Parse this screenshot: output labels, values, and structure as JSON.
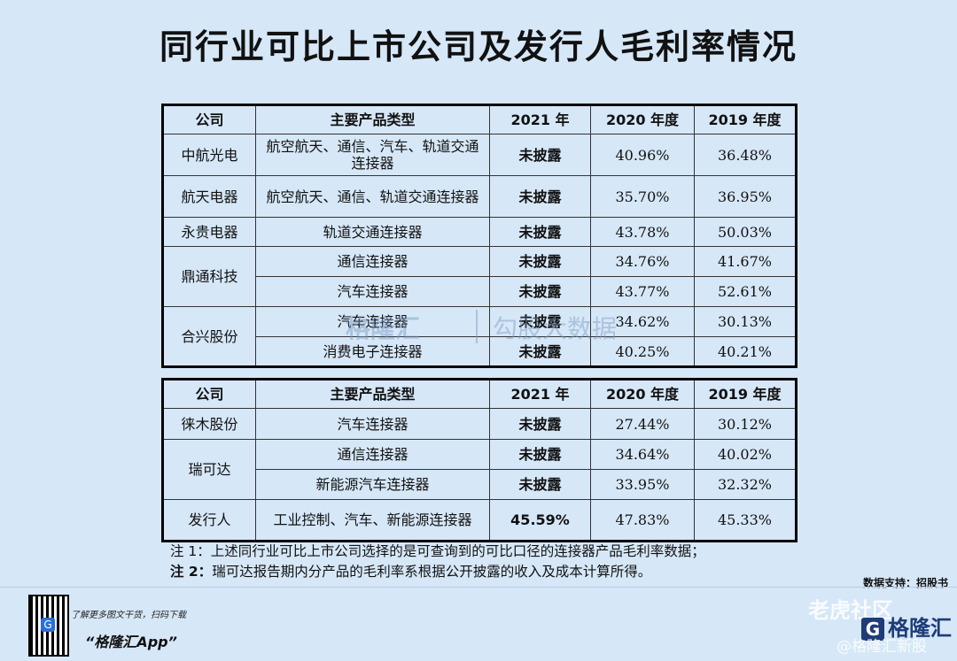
{
  "title": "同行业可比上市公司及发行人毛利率情况",
  "headers": [
    "公司",
    "主要产品类型",
    "2021 年",
    "2020 年度",
    "2019 年度"
  ],
  "table1": {
    "rows": [
      {
        "company": "中航光电",
        "product": "航空航天、通信、汽车、轨道交通连接器",
        "y2021": "未披露",
        "y2020": "40.96%",
        "y2019": "36.48%"
      },
      {
        "company": "航天电器",
        "product": "航空航天、通信、轨道交通连接器",
        "y2021": "未披露",
        "y2020": "35.70%",
        "y2019": "36.95%"
      },
      {
        "company": "永贵电器",
        "product": "轨道交通连接器",
        "y2021": "未披露",
        "y2020": "43.78%",
        "y2019": "50.03%"
      },
      {
        "company": "鼎通科技",
        "product": "通信连接器",
        "y2021": "未披露",
        "y2020": "34.76%",
        "y2019": "41.67%"
      },
      {
        "company": "",
        "product": "汽车连接器",
        "y2021": "未披露",
        "y2020": "43.77%",
        "y2019": "52.61%"
      },
      {
        "company": "合兴股份",
        "product": "汽车连接器",
        "y2021": "未披露",
        "y2020": "34.62%",
        "y2019": "30.13%"
      },
      {
        "company": "",
        "product": "消费电子连接器",
        "y2021": "未披露",
        "y2020": "40.25%",
        "y2019": "40.21%"
      }
    ]
  },
  "table2": {
    "rows": [
      {
        "company": "徕木股份",
        "product": "汽车连接器",
        "y2021": "未披露",
        "y2020": "27.44%",
        "y2019": "30.12%"
      },
      {
        "company": "瑞可达",
        "product": "通信连接器",
        "y2021": "未披露",
        "y2020": "34.64%",
        "y2019": "40.02%"
      },
      {
        "company": "",
        "product": "新能源汽车连接器",
        "y2021": "未披露",
        "y2020": "33.95%",
        "y2019": "32.32%"
      },
      {
        "company": "发行人",
        "product": "工业控制、汽车、新能源连接器",
        "y2021": "45.59%",
        "y2020": "47.83%",
        "y2019": "45.33%"
      }
    ]
  },
  "notes": [
    {
      "label": "注 1：",
      "text": "上述同行业可比上市公司选择的是可查询到的可比口径的连接器产品毛利率数据；"
    },
    {
      "label": "注 2：",
      "text": "瑞可达报告期内分产品的毛利率系根据公开披露的收入及成本计算所得。"
    }
  ],
  "source": "数据支持：招股书",
  "footer": {
    "download_hint": "了解更多图文干货，扫码下载",
    "app_name": "“格隆汇App”",
    "logo_text": "格隆汇",
    "qr_glyph": "G"
  },
  "watermarks": {
    "center_left": "格隆汇",
    "center_right": "勾股大数据",
    "corner_top": "老虎社区",
    "corner_bottom": "@格隆汇新股"
  }
}
